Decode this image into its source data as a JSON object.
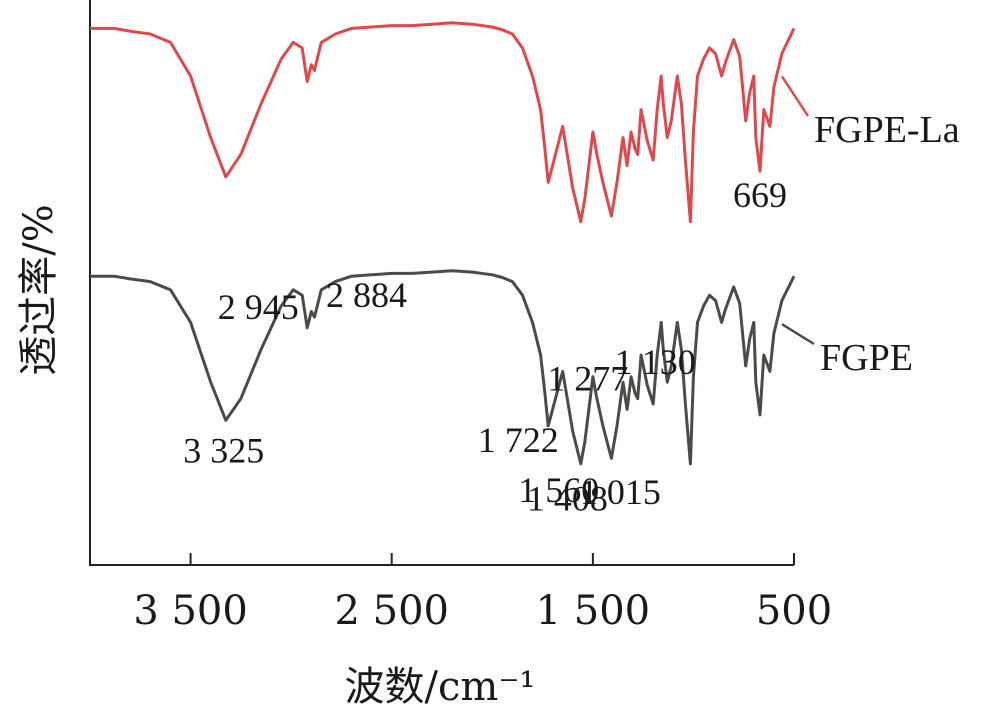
{
  "chart_data": {
    "type": "line",
    "xlabel": "波数/cm⁻¹",
    "ylabel": "透过率/%",
    "xlim": [
      4000,
      500
    ],
    "x_reversed": true,
    "x_ticks": [
      {
        "value": 3500,
        "label": "3 500"
      },
      {
        "value": 2500,
        "label": "2 500"
      },
      {
        "value": 1500,
        "label": "1 500"
      },
      {
        "value": 500,
        "label": "500"
      }
    ],
    "grid": false,
    "series": [
      {
        "name": "FGPE-La",
        "color": "#e0484c",
        "x": [
          4000,
          3880,
          3800,
          3700,
          3600,
          3500,
          3400,
          3325,
          3250,
          3150,
          3050,
          2990,
          2945,
          2920,
          2900,
          2884,
          2850,
          2780,
          2700,
          2600,
          2500,
          2400,
          2300,
          2200,
          2100,
          2000,
          1950,
          1900,
          1850,
          1800,
          1760,
          1740,
          1722,
          1700,
          1650,
          1600,
          1560,
          1540,
          1500,
          1480,
          1450,
          1408,
          1380,
          1350,
          1330,
          1310,
          1290,
          1277,
          1260,
          1230,
          1200,
          1180,
          1160,
          1150,
          1130,
          1110,
          1080,
          1060,
          1040,
          1015,
          1000,
          980,
          950,
          920,
          890,
          860,
          840,
          800,
          770,
          740,
          720,
          700,
          690,
          669,
          650,
          620,
          600,
          560,
          520,
          500
        ],
        "y": [
          97,
          97,
          96,
          95,
          92,
          80,
          58,
          44,
          52,
          70,
          86,
          92,
          90,
          78,
          84,
          82,
          92,
          95,
          97,
          97.5,
          98,
          98,
          98.5,
          99,
          98.5,
          97.5,
          96.5,
          95,
          90,
          80,
          68,
          55,
          42,
          48,
          62,
          40,
          28,
          36,
          60,
          52,
          42,
          30,
          42,
          58,
          48,
          60,
          54,
          52,
          68,
          57,
          50,
          68,
          80,
          70,
          58,
          64,
          80,
          70,
          50,
          28,
          60,
          80,
          86,
          90,
          88,
          80,
          85,
          93,
          87,
          64,
          74,
          80,
          58,
          46,
          68,
          62,
          76,
          88,
          94,
          97
        ]
      },
      {
        "name": "FGPE",
        "color": "#4e4a46",
        "x": [
          4000,
          3880,
          3800,
          3700,
          3600,
          3500,
          3400,
          3325,
          3250,
          3150,
          3050,
          2990,
          2945,
          2920,
          2900,
          2884,
          2850,
          2780,
          2700,
          2600,
          2500,
          2400,
          2300,
          2200,
          2100,
          2000,
          1950,
          1900,
          1850,
          1800,
          1760,
          1740,
          1722,
          1700,
          1650,
          1600,
          1560,
          1540,
          1500,
          1480,
          1450,
          1408,
          1380,
          1350,
          1330,
          1310,
          1290,
          1277,
          1260,
          1230,
          1200,
          1180,
          1160,
          1150,
          1130,
          1110,
          1080,
          1060,
          1040,
          1015,
          1000,
          980,
          950,
          920,
          890,
          860,
          840,
          800,
          770,
          740,
          720,
          700,
          690,
          669,
          650,
          620,
          600,
          560,
          520,
          500
        ],
        "y": [
          97,
          97,
          96,
          95,
          92,
          80,
          58,
          44,
          52,
          70,
          86,
          92,
          90,
          78,
          84,
          82,
          92,
          95,
          97,
          97.5,
          98,
          98,
          98.5,
          99,
          98.5,
          97.5,
          96.5,
          95,
          90,
          80,
          68,
          55,
          42,
          48,
          62,
          40,
          28,
          36,
          60,
          52,
          42,
          30,
          42,
          58,
          48,
          60,
          54,
          52,
          68,
          57,
          50,
          68,
          80,
          70,
          58,
          64,
          80,
          70,
          50,
          28,
          60,
          80,
          86,
          90,
          88,
          80,
          85,
          93,
          87,
          64,
          74,
          80,
          58,
          46,
          68,
          62,
          76,
          88,
          94,
          97
        ]
      }
    ],
    "annotations": [
      {
        "text": "3 325",
        "x": 3325,
        "series": "FGPE"
      },
      {
        "text": "2 945",
        "x": 2945,
        "series": "FGPE"
      },
      {
        "text": "2 884",
        "x": 2884,
        "series": "FGPE"
      },
      {
        "text": "1 722",
        "x": 1722,
        "series": "FGPE"
      },
      {
        "text": "1 560",
        "x": 1560,
        "series": "FGPE"
      },
      {
        "text": "1 408",
        "x": 1408,
        "series": "FGPE"
      },
      {
        "text": "1 277",
        "x": 1277,
        "series": "FGPE"
      },
      {
        "text": "1 130",
        "x": 1130,
        "series": "FGPE"
      },
      {
        "text": "1 015",
        "x": 1015,
        "series": "FGPE"
      },
      {
        "text": "669",
        "x": 669,
        "series": "FGPE-La"
      }
    ]
  }
}
